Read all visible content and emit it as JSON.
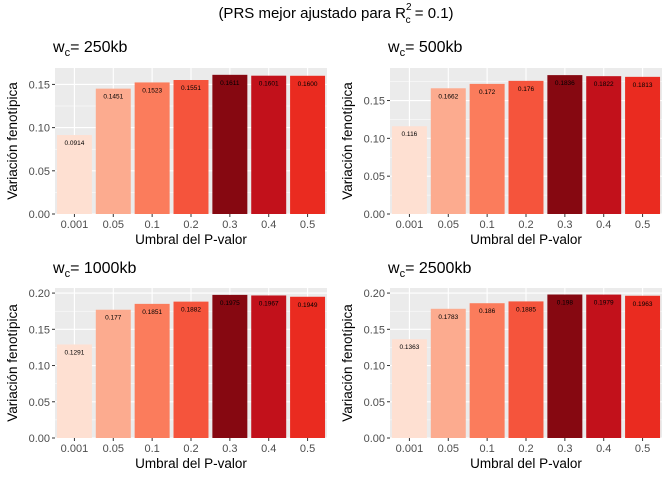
{
  "title": {
    "prefix": "(PRS mejor ajustado para R",
    "sup": "2",
    "sub": "c",
    "suffix": " = 0.1)"
  },
  "chart_data": [
    {
      "type": "bar",
      "title_main": "w",
      "title_sub": "c",
      "title_rest": "= 250kb",
      "xlabel": "Umbral del P-valor",
      "ylabel": "Variación fenotípica",
      "categories": [
        "0.001",
        "0.05",
        "0.1",
        "0.2",
        "0.3",
        "0.4",
        "0.5"
      ],
      "values": [
        0.0914,
        0.1451,
        0.1523,
        0.1551,
        0.1611,
        0.1601,
        0.16
      ],
      "labels": [
        "0.0914",
        "0.1451",
        "0.1523",
        "0.1551",
        "0.1611",
        "0.1601",
        "0.1600"
      ],
      "yticks": [
        0.0,
        0.05,
        0.1,
        0.15
      ],
      "ytick_labels": [
        "0.00",
        "0.05",
        "0.10",
        "0.15"
      ],
      "ylim": [
        0,
        0.169
      ]
    },
    {
      "type": "bar",
      "title_main": "w",
      "title_sub": "c",
      "title_rest": "= 500kb",
      "xlabel": "Umbral del P-valor",
      "ylabel": "Variación fenotípica",
      "categories": [
        "0.001",
        "0.05",
        "0.1",
        "0.2",
        "0.3",
        "0.4",
        "0.5"
      ],
      "values": [
        0.116,
        0.1662,
        0.172,
        0.176,
        0.1836,
        0.1822,
        0.1813
      ],
      "labels": [
        "0.116",
        "0.1662",
        "0.172",
        "0.176",
        "0.1836",
        "0.1822",
        "0.1813"
      ],
      "yticks": [
        0.0,
        0.05,
        0.1,
        0.15
      ],
      "ytick_labels": [
        "0.00",
        "0.05",
        "0.10",
        "0.15"
      ],
      "ylim": [
        0,
        0.193
      ]
    },
    {
      "type": "bar",
      "title_main": "w",
      "title_sub": "c",
      "title_rest": "= 1000kb",
      "xlabel": "Umbral del P-valor",
      "ylabel": "Variación fenotípica",
      "categories": [
        "0.001",
        "0.05",
        "0.1",
        "0.2",
        "0.3",
        "0.4",
        "0.5"
      ],
      "values": [
        0.1291,
        0.177,
        0.1851,
        0.1882,
        0.1975,
        0.1967,
        0.1949
      ],
      "labels": [
        "0.1291",
        "0.177",
        "0.1851",
        "0.1882",
        "0.1975",
        "0.1967",
        "0.1949"
      ],
      "yticks": [
        0.0,
        0.05,
        0.1,
        0.15,
        0.2
      ],
      "ytick_labels": [
        "0.00",
        "0.05",
        "0.10",
        "0.15",
        "0.20"
      ],
      "ylim": [
        0,
        0.207
      ]
    },
    {
      "type": "bar",
      "title_main": "w",
      "title_sub": "c",
      "title_rest": "= 2500kb",
      "xlabel": "Umbral del P-valor",
      "ylabel": "Variación fenotípica",
      "categories": [
        "0.001",
        "0.05",
        "0.1",
        "0.2",
        "0.3",
        "0.4",
        "0.5"
      ],
      "values": [
        0.1363,
        0.1783,
        0.186,
        0.1885,
        0.198,
        0.1979,
        0.1963
      ],
      "labels": [
        "0.1363",
        "0.1783",
        "0.186",
        "0.1885",
        "0.198",
        "0.1979",
        "0.1963"
      ],
      "yticks": [
        0.0,
        0.05,
        0.1,
        0.15,
        0.2
      ],
      "ytick_labels": [
        "0.00",
        "0.05",
        "0.10",
        "0.15",
        "0.20"
      ],
      "ylim": [
        0,
        0.207
      ]
    }
  ],
  "bar_colors": [
    "#fee0d2",
    "#fcab8f",
    "#fb7c5c",
    "#f5543c",
    "#860811",
    "#c2111b",
    "#ea2b20"
  ],
  "panel_background": "#ebebeb",
  "grid_color": "#ffffff"
}
